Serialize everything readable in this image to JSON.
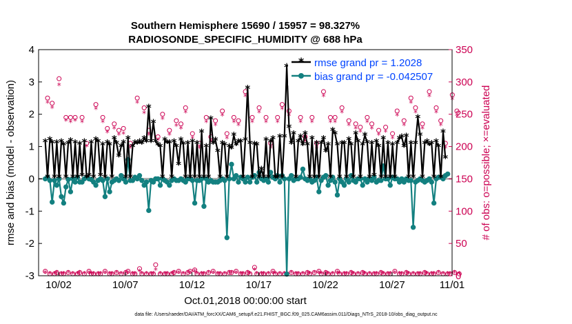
{
  "chart_data": {
    "type": "line",
    "title_line1": "Southern Hemisphere 15690 / 15957 = 98.327%",
    "title_line2": "RADIOSONDE_SPECIFIC_HUMIDITY @ 688 hPa",
    "ylabel": "rmse and bias (model - observation)",
    "ylabel_right": "# of obs: o=possible; ×=evaluated",
    "xlabel": "Oct.01,2018 00:00:00 start",
    "footer": "data file: /Users/raeder/DAI/ATM_forcXX/CAM6_setup/f.e21.FHIST_BGC.f09_025.CAM6assim.011/Diags_NTrS_2018-10/obs_diag_output.nc",
    "xlim": [
      0.5,
      31.5
    ],
    "ylim": [
      -3,
      4
    ],
    "ylim_right": [
      0,
      350
    ],
    "x_ticks": [
      {
        "value": 2,
        "label": "10/02"
      },
      {
        "value": 7,
        "label": "10/07"
      },
      {
        "value": 12,
        "label": "10/12"
      },
      {
        "value": 17,
        "label": "10/17"
      },
      {
        "value": 22,
        "label": "10/22"
      },
      {
        "value": 27,
        "label": "10/27"
      },
      {
        "value": 32,
        "label": "11/01"
      }
    ],
    "y_ticks": [
      "-3",
      "-2",
      "-1",
      "0",
      "1",
      "2",
      "3",
      "4"
    ],
    "y_ticks_right": [
      "0",
      "50",
      "100",
      "150",
      "200",
      "250",
      "300",
      "350"
    ],
    "colors": {
      "rmse": "#000000",
      "bias": "#138080",
      "obs": "#cc0052",
      "zero_line": "#aaaaaa",
      "legend_text": "#0044ff"
    },
    "series": [
      {
        "name": "rmse grand pr = 1.2028",
        "values": [
          1.15,
          0.05,
          1.22,
          1.12,
          0.05,
          1.12,
          0.05,
          1.15,
          1.05,
          0.05,
          1.1,
          1.18,
          0.05,
          1.12,
          0.05,
          1.08,
          0.1,
          1.15,
          0.05,
          0.1,
          1.12,
          0.05,
          1.22,
          1.15,
          0.1,
          1.05,
          0.05,
          1.12,
          1.05,
          0.05,
          1.25,
          1.1,
          0.7,
          1.0,
          1.12,
          0.05,
          1.25,
          0.05,
          1.0,
          1.12,
          1.1,
          1.15,
          1.1,
          1.25,
          1.15,
          2.22,
          1.15,
          1.75,
          1.15,
          1.05,
          1.0,
          0.05,
          1.2,
          1.12,
          1.12,
          0.05,
          1.15,
          1.0,
          0.45,
          1.2,
          1.08,
          0.05,
          1.1,
          0.05,
          1.15,
          0.05,
          1.1,
          0.05,
          1.45,
          0.05,
          1.0,
          0.05,
          1.85,
          1.1,
          1.2,
          0.85,
          0.05,
          1.1,
          1.05,
          0.05,
          1.0,
          0.95,
          1.35,
          1.05,
          1.15,
          1.15,
          0.05,
          1.2,
          2.8,
          1.1,
          0.05,
          1.08,
          1.05,
          0.05,
          0.3,
          0.05,
          1.2,
          0.05,
          1.15,
          1.25,
          0.05,
          0.05,
          1.3,
          0.05,
          1.3,
          3.48,
          1.6,
          1.1,
          1.4,
          0.05,
          1.15,
          1.3,
          1.05,
          1.4,
          1.05,
          0.05,
          1.25,
          0.05,
          1.1,
          0.05,
          1.1,
          1.25,
          0.85,
          1.05,
          0.05,
          1.5,
          1.4,
          1.05,
          0.05,
          1.1,
          1.1,
          0.05,
          1.22,
          1.05,
          0.05,
          1.4,
          1.15,
          0.05,
          1.05,
          1.35,
          1.12,
          0.05,
          1.1,
          0.1,
          1.15,
          1.0,
          0.05,
          1.25,
          0.05,
          1.1,
          0.05,
          1.05,
          0.05,
          1.1,
          1.25,
          1.3,
          1.0,
          1.32,
          0.05,
          1.1,
          0.05,
          1.1,
          1.9,
          1.35,
          0.05,
          1.1,
          1.15,
          1.05,
          1.1,
          0.05,
          1.15,
          1.0,
          0.05,
          1.45,
          0.65
        ],
        "color": "#000000"
      },
      {
        "name": "bias grand pr = -0.042507",
        "values": [
          0.0,
          0.05,
          -0.05,
          -0.72,
          -0.05,
          -0.2,
          0.0,
          -0.55,
          -0.75,
          -0.25,
          -0.02,
          -0.4,
          0.0,
          -0.1,
          0.05,
          -0.1,
          -0.1,
          0.0,
          0.05,
          0.0,
          -0.02,
          -0.1,
          -0.2,
          -0.05,
          0.0,
          -0.05,
          -0.55,
          0.0,
          -0.4,
          -0.1,
          -0.05,
          0.0,
          -0.05,
          0.1,
          0.0,
          -0.1,
          0.6,
          -0.05,
          -0.05,
          0.05,
          0.0,
          0.1,
          -0.05,
          -0.2,
          -0.1,
          -0.98,
          -0.05,
          -0.1,
          0.0,
          0.0,
          -0.2,
          0.0,
          -0.05,
          -0.1,
          -0.2,
          -0.05,
          0.0,
          -0.05,
          -0.05,
          0.0,
          -0.05,
          -0.1,
          0.0,
          0.0,
          -0.05,
          -0.75,
          -0.05,
          -0.05,
          0.0,
          -0.85,
          0.0,
          -0.1,
          -0.05,
          -0.1,
          -0.1,
          -0.1,
          -0.05,
          0.0,
          -0.05,
          -1.82,
          0.0,
          0.45,
          0.0,
          0.1,
          -0.1,
          0.05,
          0.0,
          -0.1,
          0.05,
          -0.1,
          0.05,
          0.1,
          -0.1,
          0.2,
          0.0,
          -0.05,
          0.0,
          -0.1,
          0.2,
          0.05,
          0.0,
          0.1,
          -0.1,
          0.1,
          0.0,
          -2.95,
          0.0,
          0.1,
          -0.05,
          0.0,
          0.0,
          0.05,
          0.3,
          0.0,
          -0.05,
          0.0,
          -0.1,
          -0.05,
          0.05,
          -0.4,
          -0.05,
          0.05,
          0.1,
          -0.2,
          -0.05,
          0.05,
          -0.1,
          -0.5,
          0.0,
          -0.1,
          -0.2,
          0.0,
          -0.1,
          0.1,
          -0.05,
          -0.1,
          0.0,
          0.0,
          -0.2,
          0.0,
          -0.1,
          0.0,
          -0.05,
          0.05,
          -0.1,
          -0.05,
          -0.05,
          0.4,
          0.0,
          0.0,
          -0.2,
          0.05,
          0.0,
          0.0,
          -0.1,
          0.0,
          -0.1,
          0.0,
          -0.05,
          -0.05,
          -1.5,
          -0.1,
          -0.05,
          0.0,
          -0.05,
          -0.1,
          -0.05,
          0.0,
          -0.1,
          -0.75,
          0.0,
          0.05,
          0.05,
          0.0,
          0.1,
          0.15
        ],
        "color": "#138080"
      },
      {
        "name": "# of obs possible",
        "values": [
          7,
          275,
          3,
          267,
          3,
          5,
          305,
          3,
          3,
          245,
          5,
          245,
          3,
          245,
          3,
          5,
          245,
          3,
          205,
          7,
          3,
          3,
          265,
          3,
          3,
          245,
          7,
          228,
          3,
          3,
          235,
          5,
          225,
          3,
          228,
          5,
          7,
          205,
          3,
          3,
          275,
          11,
          3,
          260,
          3,
          225,
          3,
          3,
          17,
          215,
          3,
          250,
          3,
          3,
          225,
          3,
          5,
          240,
          7,
          235,
          3,
          260,
          5,
          7,
          220,
          9,
          3,
          205,
          3,
          3,
          245,
          5,
          215,
          7,
          240,
          3,
          3,
          255,
          3,
          220,
          5,
          5,
          245,
          7,
          240,
          3,
          3,
          285,
          5,
          3,
          245,
          13,
          3,
          260,
          3,
          3,
          245,
          3,
          205,
          7,
          3,
          245,
          3,
          265,
          3,
          3,
          255,
          5,
          305,
          3,
          3,
          245,
          3,
          215,
          5,
          3,
          245,
          5,
          205,
          7,
          3,
          285,
          5,
          3,
          245,
          3,
          245,
          7,
          3,
          260,
          3,
          3,
          240,
          5,
          3,
          235,
          3,
          230,
          5,
          3,
          245,
          3,
          235,
          3,
          3,
          225,
          5,
          3,
          230,
          3,
          3,
          220,
          7,
          255,
          3,
          3,
          240,
          5,
          3,
          275,
          3,
          260,
          3,
          3,
          235,
          5,
          3,
          285,
          3,
          3,
          260,
          5,
          240,
          3,
          205,
          3,
          3,
          280,
          5,
          255,
          3
        ],
        "color": "#cc0052",
        "marker": "o"
      },
      {
        "name": "# of obs evaluated",
        "values": [
          5,
          268,
          3,
          260,
          3,
          5,
          295,
          3,
          3,
          240,
          5,
          238,
          3,
          240,
          3,
          5,
          238,
          3,
          200,
          5,
          3,
          3,
          258,
          3,
          3,
          238,
          5,
          222,
          3,
          3,
          228,
          5,
          218,
          3,
          220,
          5,
          5,
          198,
          3,
          3,
          268,
          7,
          3,
          252,
          3,
          218,
          3,
          3,
          9,
          210,
          3,
          243,
          3,
          3,
          218,
          3,
          5,
          232,
          5,
          228,
          3,
          253,
          5,
          5,
          213,
          7,
          3,
          198,
          3,
          3,
          238,
          5,
          208,
          5,
          233,
          3,
          3,
          248,
          3,
          213,
          5,
          5,
          238,
          5,
          233,
          3,
          3,
          278,
          5,
          3,
          238,
          9,
          3,
          253,
          3,
          3,
          238,
          3,
          198,
          5,
          3,
          238,
          3,
          258,
          3,
          3,
          248,
          5,
          298,
          3,
          3,
          238,
          3,
          208,
          5,
          3,
          238,
          5,
          198,
          5,
          3,
          278,
          5,
          3,
          238,
          3,
          238,
          5,
          3,
          253,
          3,
          3,
          233,
          5,
          3,
          228,
          3,
          223,
          5,
          3,
          238,
          3,
          228,
          3,
          3,
          218,
          5,
          3,
          223,
          3,
          3,
          213,
          5,
          248,
          3,
          3,
          233,
          5,
          3,
          268,
          3,
          253,
          3,
          3,
          228,
          5,
          3,
          278,
          3,
          3,
          253,
          5,
          233,
          3,
          198,
          3,
          3,
          273,
          5,
          248,
          3
        ],
        "color": "#cc0052",
        "marker": "*"
      }
    ]
  }
}
